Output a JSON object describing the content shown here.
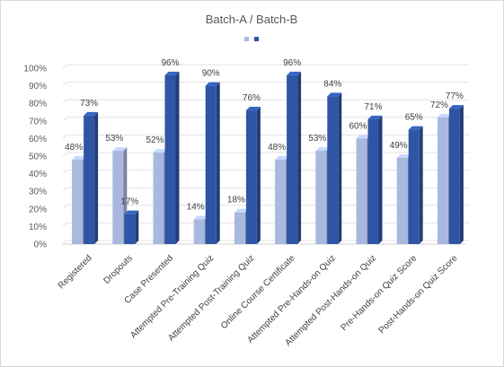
{
  "chart_data": {
    "type": "bar",
    "title": "Batch-A / Batch-B",
    "legend_position": "top",
    "grid": true,
    "ylim": [
      0,
      100
    ],
    "yticks": [
      "0%",
      "10%",
      "20%",
      "30%",
      "40%",
      "50%",
      "60%",
      "70%",
      "80%",
      "90%",
      "100%"
    ],
    "categories": [
      "Registered",
      "Dropouts",
      "Case Presented",
      "Attempted Pre-Training Quiz",
      "Attempted Post-Training Quiz",
      "Online Course Certificate",
      "Attempted Pre-Hands-on Quiz",
      "Attempted Post-Hands-on Quiz",
      "Pre-Hands-on Quiz Score",
      "Post-Hands-on Quiz Score"
    ],
    "series": [
      {
        "values": [
          48,
          53,
          52,
          14,
          18,
          48,
          53,
          60,
          49,
          72
        ],
        "labels": [
          "48%",
          "53%",
          "52%",
          "14%",
          "18%",
          "48%",
          "53%",
          "60%",
          "49%",
          "72%"
        ],
        "color": "#a9b8de"
      },
      {
        "values": [
          73,
          17,
          96,
          90,
          76,
          96,
          84,
          71,
          65,
          77
        ],
        "labels": [
          "73%",
          "17%",
          "96%",
          "90%",
          "76%",
          "96%",
          "84%",
          "71%",
          "65%",
          "77%"
        ],
        "color": "#2f56a6"
      }
    ]
  }
}
